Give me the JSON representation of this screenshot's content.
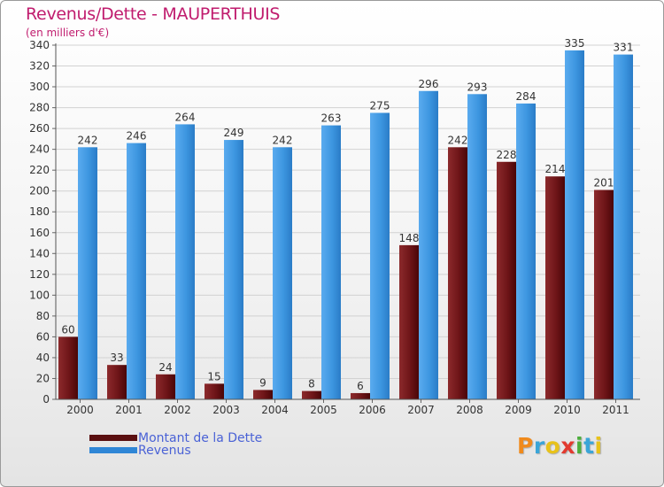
{
  "title": "Revenus/Dette - MAUPERTHUIS",
  "subtitle": "(en milliers d'€)",
  "brand": "Proxiti",
  "colors": {
    "title": "#c01c6e",
    "dette": "#7a1a1d",
    "revenus": "#3d96e0",
    "legend_text": "#4a62d6"
  },
  "chart_data": {
    "type": "bar",
    "categories": [
      "2000",
      "2001",
      "2002",
      "2003",
      "2004",
      "2005",
      "2006",
      "2007",
      "2008",
      "2009",
      "2010",
      "2011"
    ],
    "series": [
      {
        "name": "Montant de la Dette",
        "values": [
          60,
          33,
          24,
          15,
          9,
          8,
          6,
          148,
          242,
          228,
          214,
          201
        ]
      },
      {
        "name": "Revenus",
        "values": [
          242,
          246,
          264,
          249,
          242,
          263,
          275,
          296,
          293,
          284,
          335,
          331
        ]
      }
    ],
    "ylim": [
      0,
      340
    ],
    "y_ticks": [
      0,
      20,
      40,
      60,
      80,
      100,
      120,
      140,
      160,
      180,
      200,
      220,
      240,
      260,
      280,
      300,
      320,
      340
    ],
    "grid": true,
    "legend": "bottom-left"
  }
}
